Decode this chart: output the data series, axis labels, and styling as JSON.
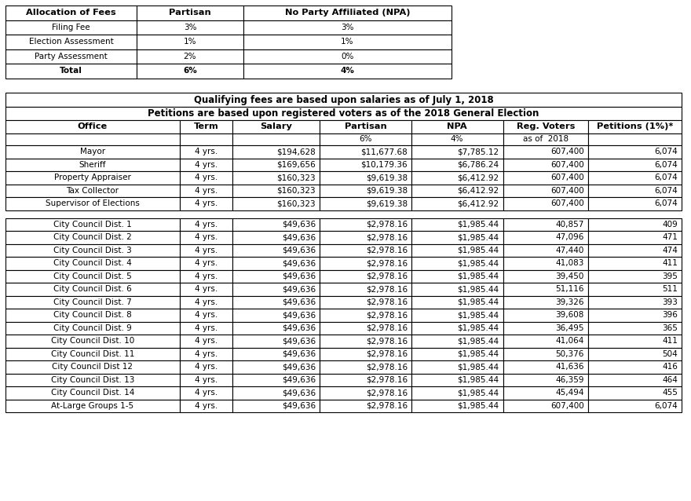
{
  "table1_headers": [
    "Allocation of Fees",
    "Partisan",
    "No Party Affiliated (NPA)"
  ],
  "table1_rows": [
    [
      "Filing Fee",
      "3%",
      "3%"
    ],
    [
      "Election Assessment",
      "1%",
      "1%"
    ],
    [
      "Party Assessment",
      "2%",
      "0%"
    ],
    [
      "Total",
      "6%",
      "4%"
    ]
  ],
  "table2_title1": "Qualifying fees are based upon salaries as of July 1, 2018",
  "table2_title2": "Petitions are based upon registered voters as of the 2018 General Election",
  "table2_headers": [
    "Office",
    "Term",
    "Salary",
    "Partisan",
    "NPA",
    "Reg. Voters",
    "Petitions (1%)*"
  ],
  "table2_subheaders": [
    "",
    "",
    "",
    "6%",
    "4%",
    "as of  2018",
    ""
  ],
  "table2_county_rows": [
    [
      "Mayor",
      "4 yrs.",
      "$194,628",
      "$11,677.68",
      "$7,785.12",
      "607,400",
      "6,074"
    ],
    [
      "Sheriff",
      "4 yrs.",
      "$169,656",
      "$10,179.36",
      "$6,786.24",
      "607,400",
      "6,074"
    ],
    [
      "Property Appraiser",
      "4 yrs.",
      "$160,323",
      "$9,619.38",
      "$6,412.92",
      "607,400",
      "6,074"
    ],
    [
      "Tax Collector",
      "4 yrs.",
      "$160,323",
      "$9,619.38",
      "$6,412.92",
      "607,400",
      "6,074"
    ],
    [
      "Supervisor of Elections",
      "4 yrs.",
      "$160,323",
      "$9,619.38",
      "$6,412.92",
      "607,400",
      "6,074"
    ]
  ],
  "table2_city_rows": [
    [
      "City Council Dist. 1",
      "4 yrs.",
      "$49,636",
      "$2,978.16",
      "$1,985.44",
      "40,857",
      "409"
    ],
    [
      "City Council Dist. 2",
      "4 yrs.",
      "$49,636",
      "$2,978.16",
      "$1,985.44",
      "47,096",
      "471"
    ],
    [
      "City Council Dist. 3",
      "4 yrs.",
      "$49,636",
      "$2,978.16",
      "$1,985.44",
      "47,440",
      "474"
    ],
    [
      "City Council Dist. 4",
      "4 yrs.",
      "$49,636",
      "$2,978.16",
      "$1,985.44",
      "41,083",
      "411"
    ],
    [
      "City Council Dist. 5",
      "4 yrs.",
      "$49,636",
      "$2,978.16",
      "$1,985.44",
      "39,450",
      "395"
    ],
    [
      "City Council Dist. 6",
      "4 yrs.",
      "$49,636",
      "$2,978.16",
      "$1,985.44",
      "51,116",
      "511"
    ],
    [
      "City Council Dist. 7",
      "4 yrs.",
      "$49,636",
      "$2,978.16",
      "$1,985.44",
      "39,326",
      "393"
    ],
    [
      "City Council Dist. 8",
      "4 yrs.",
      "$49,636",
      "$2,978.16",
      "$1,985.44",
      "39,608",
      "396"
    ],
    [
      "City Council Dist. 9",
      "4 yrs.",
      "$49,636",
      "$2,978.16",
      "$1,985.44",
      "36,495",
      "365"
    ],
    [
      "City Council Dist. 10",
      "4 yrs.",
      "$49,636",
      "$2,978.16",
      "$1,985.44",
      "41,064",
      "411"
    ],
    [
      "City Council Dist. 11",
      "4 yrs.",
      "$49,636",
      "$2,978.16",
      "$1,985.44",
      "50,376",
      "504"
    ],
    [
      "City Council Dist 12",
      "4 yrs.",
      "$49,636",
      "$2,978.16",
      "$1,985.44",
      "41,636",
      "416"
    ],
    [
      "City Council Dist. 13",
      "4 yrs.",
      "$49,636",
      "$2,978.16",
      "$1,985.44",
      "46,359",
      "464"
    ],
    [
      "City Council Dist. 14",
      "4 yrs.",
      "$49,636",
      "$2,978.16",
      "$1,985.44",
      "45,494",
      "455"
    ],
    [
      "At-Large Groups 1-5",
      "4 yrs.",
      "$49,636",
      "$2,978.16",
      "$1,985.44",
      "607,400",
      "6,074"
    ]
  ],
  "background_color": "#ffffff",
  "border_color": "#000000",
  "text_color": "#000000",
  "font_size": 7.5,
  "header_font_size": 8.2,
  "title_font_size": 8.5
}
